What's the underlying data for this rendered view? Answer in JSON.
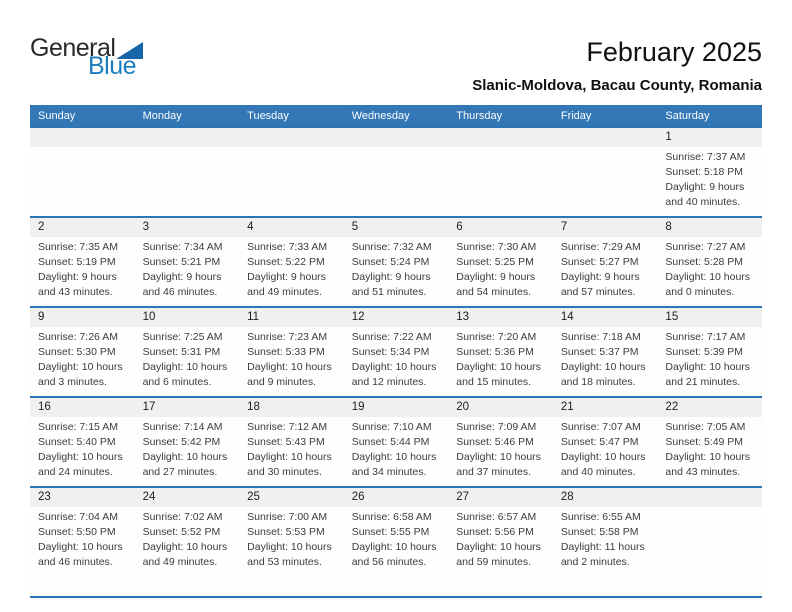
{
  "logo": {
    "line1": "General",
    "line2": "Blue",
    "triangle_icon": "blue-triangle"
  },
  "title": "February 2025",
  "location": "Slanic-Moldova, Bacau County, Romania",
  "colors": {
    "header_bg": "#3377B7",
    "row_border": "#2E75B5",
    "band_bg": "#F0F0F0",
    "logo_blue": "#1E7DC1",
    "triangle_blue": "#1565A8",
    "text_dark": "#1D1D1D",
    "info_text": "#3C3C3C"
  },
  "weekdays": [
    "Sunday",
    "Monday",
    "Tuesday",
    "Wednesday",
    "Thursday",
    "Friday",
    "Saturday"
  ],
  "weeks": [
    [
      null,
      null,
      null,
      null,
      null,
      null,
      {
        "day": "1",
        "lines": [
          "Sunrise: 7:37 AM",
          "Sunset: 5:18 PM",
          "Daylight: 9 hours",
          "and 40 minutes."
        ]
      }
    ],
    [
      {
        "day": "2",
        "lines": [
          "Sunrise: 7:35 AM",
          "Sunset: 5:19 PM",
          "Daylight: 9 hours",
          "and 43 minutes."
        ]
      },
      {
        "day": "3",
        "lines": [
          "Sunrise: 7:34 AM",
          "Sunset: 5:21 PM",
          "Daylight: 9 hours",
          "and 46 minutes."
        ]
      },
      {
        "day": "4",
        "lines": [
          "Sunrise: 7:33 AM",
          "Sunset: 5:22 PM",
          "Daylight: 9 hours",
          "and 49 minutes."
        ]
      },
      {
        "day": "5",
        "lines": [
          "Sunrise: 7:32 AM",
          "Sunset: 5:24 PM",
          "Daylight: 9 hours",
          "and 51 minutes."
        ]
      },
      {
        "day": "6",
        "lines": [
          "Sunrise: 7:30 AM",
          "Sunset: 5:25 PM",
          "Daylight: 9 hours",
          "and 54 minutes."
        ]
      },
      {
        "day": "7",
        "lines": [
          "Sunrise: 7:29 AM",
          "Sunset: 5:27 PM",
          "Daylight: 9 hours",
          "and 57 minutes."
        ]
      },
      {
        "day": "8",
        "lines": [
          "Sunrise: 7:27 AM",
          "Sunset: 5:28 PM",
          "Daylight: 10 hours",
          "and 0 minutes."
        ]
      }
    ],
    [
      {
        "day": "9",
        "lines": [
          "Sunrise: 7:26 AM",
          "Sunset: 5:30 PM",
          "Daylight: 10 hours",
          "and 3 minutes."
        ]
      },
      {
        "day": "10",
        "lines": [
          "Sunrise: 7:25 AM",
          "Sunset: 5:31 PM",
          "Daylight: 10 hours",
          "and 6 minutes."
        ]
      },
      {
        "day": "11",
        "lines": [
          "Sunrise: 7:23 AM",
          "Sunset: 5:33 PM",
          "Daylight: 10 hours",
          "and 9 minutes."
        ]
      },
      {
        "day": "12",
        "lines": [
          "Sunrise: 7:22 AM",
          "Sunset: 5:34 PM",
          "Daylight: 10 hours",
          "and 12 minutes."
        ]
      },
      {
        "day": "13",
        "lines": [
          "Sunrise: 7:20 AM",
          "Sunset: 5:36 PM",
          "Daylight: 10 hours",
          "and 15 minutes."
        ]
      },
      {
        "day": "14",
        "lines": [
          "Sunrise: 7:18 AM",
          "Sunset: 5:37 PM",
          "Daylight: 10 hours",
          "and 18 minutes."
        ]
      },
      {
        "day": "15",
        "lines": [
          "Sunrise: 7:17 AM",
          "Sunset: 5:39 PM",
          "Daylight: 10 hours",
          "and 21 minutes."
        ]
      }
    ],
    [
      {
        "day": "16",
        "lines": [
          "Sunrise: 7:15 AM",
          "Sunset: 5:40 PM",
          "Daylight: 10 hours",
          "and 24 minutes."
        ]
      },
      {
        "day": "17",
        "lines": [
          "Sunrise: 7:14 AM",
          "Sunset: 5:42 PM",
          "Daylight: 10 hours",
          "and 27 minutes."
        ]
      },
      {
        "day": "18",
        "lines": [
          "Sunrise: 7:12 AM",
          "Sunset: 5:43 PM",
          "Daylight: 10 hours",
          "and 30 minutes."
        ]
      },
      {
        "day": "19",
        "lines": [
          "Sunrise: 7:10 AM",
          "Sunset: 5:44 PM",
          "Daylight: 10 hours",
          "and 34 minutes."
        ]
      },
      {
        "day": "20",
        "lines": [
          "Sunrise: 7:09 AM",
          "Sunset: 5:46 PM",
          "Daylight: 10 hours",
          "and 37 minutes."
        ]
      },
      {
        "day": "21",
        "lines": [
          "Sunrise: 7:07 AM",
          "Sunset: 5:47 PM",
          "Daylight: 10 hours",
          "and 40 minutes."
        ]
      },
      {
        "day": "22",
        "lines": [
          "Sunrise: 7:05 AM",
          "Sunset: 5:49 PM",
          "Daylight: 10 hours",
          "and 43 minutes."
        ]
      }
    ],
    [
      {
        "day": "23",
        "lines": [
          "Sunrise: 7:04 AM",
          "Sunset: 5:50 PM",
          "Daylight: 10 hours",
          "and 46 minutes."
        ]
      },
      {
        "day": "24",
        "lines": [
          "Sunrise: 7:02 AM",
          "Sunset: 5:52 PM",
          "Daylight: 10 hours",
          "and 49 minutes."
        ]
      },
      {
        "day": "25",
        "lines": [
          "Sunrise: 7:00 AM",
          "Sunset: 5:53 PM",
          "Daylight: 10 hours",
          "and 53 minutes."
        ]
      },
      {
        "day": "26",
        "lines": [
          "Sunrise: 6:58 AM",
          "Sunset: 5:55 PM",
          "Daylight: 10 hours",
          "and 56 minutes."
        ]
      },
      {
        "day": "27",
        "lines": [
          "Sunrise: 6:57 AM",
          "Sunset: 5:56 PM",
          "Daylight: 10 hours",
          "and 59 minutes."
        ]
      },
      {
        "day": "28",
        "lines": [
          "Sunrise: 6:55 AM",
          "Sunset: 5:58 PM",
          "Daylight: 11 hours",
          "and 2 minutes."
        ]
      },
      null
    ]
  ]
}
